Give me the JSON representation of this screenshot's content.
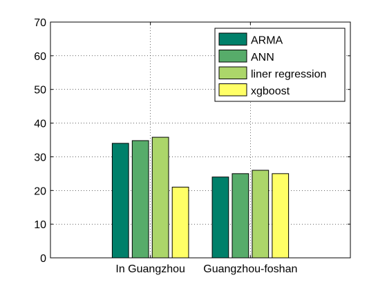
{
  "chart_data": {
    "type": "bar",
    "categories": [
      "In Guangzhou",
      "Guangzhou-foshan"
    ],
    "series": [
      {
        "name": "ARMA",
        "values": [
          34,
          24
        ],
        "color": "#00806a"
      },
      {
        "name": "ANN",
        "values": [
          34.8,
          25
        ],
        "color": "#57ac6a"
      },
      {
        "name": "liner regression",
        "values": [
          35.8,
          26
        ],
        "color": "#acd66a"
      },
      {
        "name": "xgboost",
        "values": [
          21,
          25
        ],
        "color": "#ffff66"
      }
    ],
    "xlabel": "",
    "ylabel": "",
    "ylim": [
      0,
      70
    ],
    "yticks": [
      "0",
      "10",
      "20",
      "30",
      "40",
      "50",
      "60",
      "70"
    ],
    "grid": true,
    "legend_position": "top-right"
  }
}
